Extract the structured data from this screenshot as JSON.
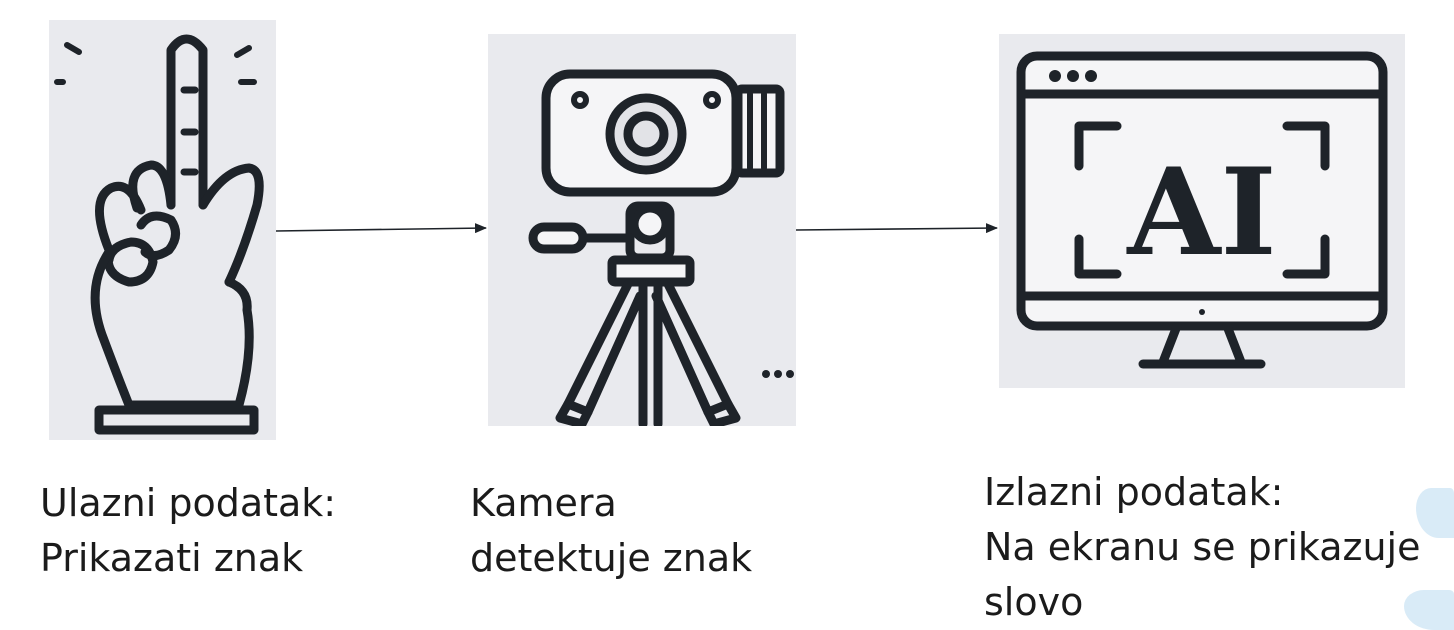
{
  "steps": [
    {
      "icon": "hand-pointing-up-icon",
      "lines": [
        "Ulazni podatak:",
        "Prikazati znak"
      ]
    },
    {
      "icon": "camera-on-tripod-icon",
      "lines": [
        "Kamera",
        "detektuje znak"
      ]
    },
    {
      "icon": "ai-monitor-icon",
      "screen_text": "AI",
      "lines": [
        "Izlazni podatak:",
        "Na ekranu se prikazuje",
        "slovo"
      ]
    }
  ],
  "colors": {
    "panel": "#e9eaee",
    "stroke": "#1e2329",
    "text": "#1b1b1b",
    "accent": "#d9ebf7"
  }
}
